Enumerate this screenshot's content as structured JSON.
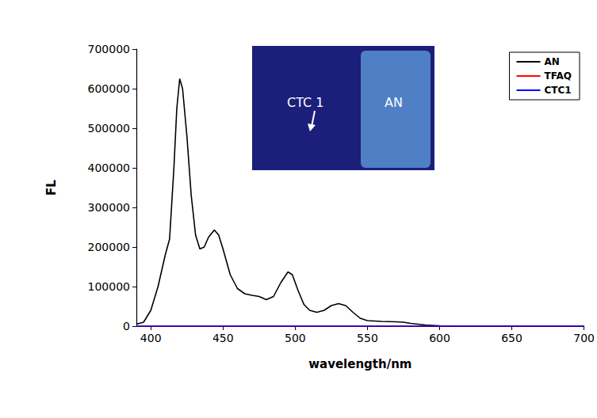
{
  "chart_data": {
    "type": "line",
    "x_label": "wavelength/nm",
    "y_label": "FL",
    "x": [
      390,
      395,
      400,
      405,
      410,
      413,
      416,
      418,
      420,
      422,
      425,
      428,
      431,
      434,
      437,
      440,
      444,
      447,
      450,
      455,
      460,
      465,
      470,
      475,
      480,
      485,
      490,
      495,
      498,
      502,
      506,
      510,
      515,
      520,
      525,
      530,
      535,
      540,
      545,
      550,
      560,
      570,
      575,
      580,
      590,
      600,
      620,
      650,
      700
    ],
    "series": [
      {
        "name": "AN",
        "color": "#000000",
        "values": [
          5000,
          10000,
          40000,
          100000,
          180000,
          220000,
          400000,
          550000,
          625000,
          600000,
          480000,
          330000,
          230000,
          195000,
          200000,
          225000,
          243000,
          230000,
          195000,
          130000,
          95000,
          82000,
          78000,
          75000,
          67000,
          75000,
          110000,
          137000,
          130000,
          90000,
          55000,
          40000,
          35000,
          40000,
          52000,
          57000,
          52000,
          35000,
          20000,
          14000,
          12000,
          11000,
          10000,
          7000,
          3000,
          1000,
          0,
          0,
          0
        ]
      },
      {
        "name": "TFAQ",
        "color": "#ff0000",
        "values": [
          0,
          0,
          0,
          0,
          0,
          0,
          0,
          0,
          0,
          0,
          0,
          0,
          0,
          0,
          0,
          0,
          0,
          0,
          0,
          0,
          0,
          0,
          0,
          0,
          0,
          0,
          0,
          0,
          0,
          0,
          0,
          0,
          0,
          0,
          0,
          0,
          0,
          0,
          0,
          0,
          0,
          0,
          0,
          0,
          0,
          0,
          0,
          0,
          0
        ]
      },
      {
        "name": "CTC1",
        "color": "#0000ff",
        "values": [
          0,
          0,
          0,
          0,
          0,
          0,
          0,
          0,
          0,
          0,
          0,
          0,
          0,
          0,
          0,
          0,
          0,
          0,
          0,
          0,
          0,
          0,
          0,
          0,
          0,
          0,
          0,
          0,
          0,
          0,
          0,
          0,
          0,
          0,
          0,
          0,
          0,
          0,
          0,
          0,
          0,
          0,
          0,
          0,
          0,
          0,
          0,
          0,
          0
        ]
      }
    ],
    "xlim": [
      390,
      700
    ],
    "xticks": [
      400,
      450,
      500,
      550,
      600,
      650,
      700
    ],
    "ylim": [
      0,
      700000
    ],
    "yticks": [
      0,
      100000,
      200000,
      300000,
      400000,
      500000,
      600000,
      700000
    ],
    "annotations": [
      "CTC 1",
      "AN"
    ],
    "legend": "top-right",
    "grid": false
  }
}
